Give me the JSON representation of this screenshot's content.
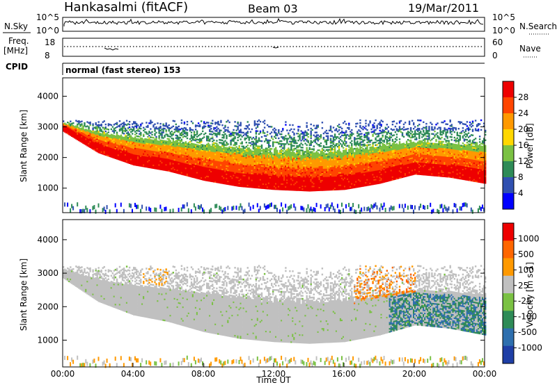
{
  "header": {
    "station": "Hankasalmi (fitACF)",
    "beam": "Beam 03",
    "date": "19/Mar/2011"
  },
  "noise_panel": {
    "left_label": "N.Sky",
    "right_label": "N.Search",
    "left_ticks": [
      "10^5",
      "10^0"
    ],
    "right_ticks": [
      "10^5",
      "10^0"
    ]
  },
  "freq_panel": {
    "left_label_1": "Freq.",
    "left_label_2": "[MHz]",
    "left_ticks": [
      "18",
      "8"
    ],
    "right_ticks": [
      "60",
      "0"
    ],
    "right_label": "Nave"
  },
  "cpid_panel": {
    "label": "CPID",
    "text": "normal (fast stereo) 153"
  },
  "chart_data": [
    {
      "type": "heatmap",
      "title": "",
      "ylabel": "Slant Range [km]",
      "xlabel": "",
      "yticks": [
        "1000",
        "2000",
        "3000",
        "4000"
      ],
      "ylim": [
        200,
        4600
      ],
      "xlim": [
        0,
        24
      ],
      "colorbar": {
        "label": "Power [dB]",
        "ticks": [
          "28",
          "24",
          "20",
          "16",
          "12",
          "8",
          "4"
        ],
        "range": [
          0,
          32
        ],
        "colors": [
          "#0000ff",
          "#3050b0",
          "#2e8b57",
          "#7ac143",
          "#ffd700",
          "#ff9900",
          "#ff4500",
          "#ee0000"
        ]
      },
      "echo_band_approx": {
        "hours": [
          0,
          2,
          4,
          6,
          8,
          10,
          12,
          14,
          16,
          18,
          20,
          22,
          24
        ],
        "slant_range_km": [
          3000,
          2300,
          1900,
          1700,
          1400,
          1200,
          1100,
          1050,
          1100,
          1300,
          1600,
          1500,
          1300
        ]
      }
    },
    {
      "type": "heatmap",
      "title": "",
      "ylabel": "Slant Range [km]",
      "xlabel": "Time UT",
      "yticks": [
        "1000",
        "2000",
        "3000",
        "4000"
      ],
      "xticks": [
        "00:00",
        "04:00",
        "08:00",
        "12:00",
        "16:00",
        "20:00",
        "00:00"
      ],
      "ylim": [
        200,
        4600
      ],
      "xlim": [
        0,
        24
      ],
      "colorbar": {
        "label": "Velocity [m s-1]",
        "ticks": [
          "1000",
          "500",
          "100",
          "25",
          "-25",
          "-100",
          "-500",
          "-1000"
        ],
        "colors": [
          "#1f3fa6",
          "#2e6fae",
          "#2e8b57",
          "#7ac143",
          "#c0c0c0",
          "#ff9900",
          "#ff6600",
          "#ee0000"
        ]
      }
    }
  ],
  "colors": {
    "ground_scatter": "#c0c0c0"
  }
}
